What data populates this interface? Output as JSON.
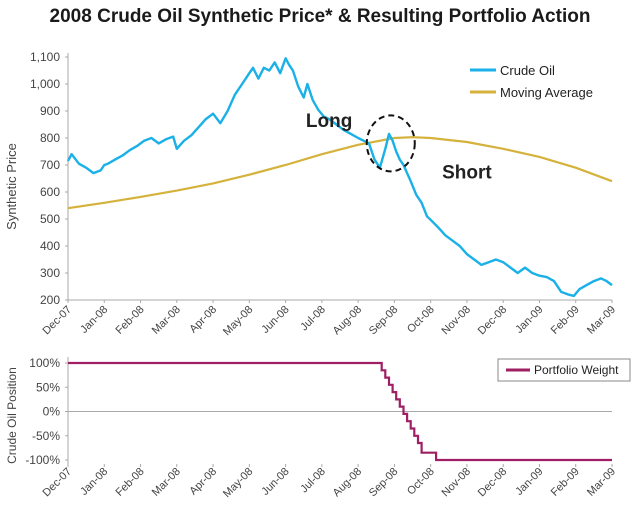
{
  "chart_data": [
    {
      "type": "line",
      "title": "2008 Crude Oil Synthetic Price* & Resulting Portfolio Action",
      "xlabel": "",
      "ylabel": "Synthetic Price",
      "ylim": [
        200,
        1100
      ],
      "yticks": [
        "200",
        "300",
        "400",
        "500",
        "600",
        "700",
        "800",
        "900",
        "1,000",
        "1,100"
      ],
      "categories": [
        "Dec-07",
        "Jan-08",
        "Feb-08",
        "Mar-08",
        "Apr-08",
        "May-08",
        "Jun-08",
        "Jul-08",
        "Aug-08",
        "Sep-08",
        "Oct-08",
        "Nov-08",
        "Dec-08",
        "Jan-09",
        "Feb-09",
        "Mar-09"
      ],
      "legend_position": "top-right",
      "colors": {
        "crude": "#1ab0e8",
        "ma": "#d4b23c",
        "axis": "#aaaaaa",
        "text": "#444444"
      },
      "series": [
        {
          "name": "Crude Oil",
          "x": [
            0,
            0.1,
            0.3,
            0.5,
            0.7,
            0.9,
            1.0,
            1.1,
            1.3,
            1.5,
            1.7,
            1.9,
            2.1,
            2.3,
            2.5,
            2.7,
            2.9,
            3.0,
            3.2,
            3.4,
            3.6,
            3.8,
            4.0,
            4.2,
            4.4,
            4.6,
            4.8,
            5.0,
            5.1,
            5.25,
            5.4,
            5.55,
            5.7,
            5.85,
            6.0,
            6.1,
            6.2,
            6.35,
            6.5,
            6.6,
            6.75,
            6.9,
            7.05,
            7.2,
            7.4,
            7.6,
            7.8,
            8.0,
            8.15,
            8.3,
            8.45,
            8.6,
            8.75,
            8.85,
            8.95,
            9.05,
            9.15,
            9.25,
            9.35,
            9.45,
            9.6,
            9.75,
            9.9,
            10.05,
            10.2,
            10.4,
            10.6,
            10.8,
            11.0,
            11.2,
            11.4,
            11.6,
            11.8,
            12.0,
            12.2,
            12.4,
            12.6,
            12.8,
            13.0,
            13.2,
            13.4,
            13.6,
            13.8,
            13.95,
            14.1,
            14.3,
            14.5,
            14.7,
            14.85,
            15.0
          ],
          "values": [
            715,
            740,
            705,
            690,
            670,
            680,
            700,
            705,
            720,
            735,
            755,
            770,
            790,
            800,
            780,
            795,
            805,
            760,
            790,
            810,
            840,
            870,
            890,
            855,
            900,
            960,
            1000,
            1040,
            1060,
            1020,
            1060,
            1050,
            1080,
            1040,
            1095,
            1070,
            1050,
            990,
            950,
            1000,
            940,
            905,
            880,
            870,
            850,
            830,
            815,
            800,
            790,
            780,
            720,
            690,
            760,
            815,
            790,
            750,
            720,
            700,
            670,
            640,
            590,
            560,
            510,
            490,
            470,
            440,
            420,
            400,
            370,
            350,
            330,
            340,
            350,
            340,
            320,
            300,
            320,
            300,
            290,
            285,
            270,
            230,
            220,
            215,
            240,
            255,
            270,
            280,
            270,
            255
          ]
        },
        {
          "name": "Moving Average",
          "x": [
            0,
            1,
            2,
            3,
            4,
            5,
            6,
            7,
            8,
            9,
            9.5,
            10,
            11,
            12,
            13,
            14,
            15
          ],
          "values": [
            540,
            560,
            582,
            605,
            632,
            664,
            700,
            740,
            775,
            800,
            803,
            800,
            785,
            760,
            730,
            690,
            640
          ]
        }
      ],
      "annotations": [
        "Long",
        "Short"
      ]
    },
    {
      "type": "line",
      "title": "",
      "xlabel": "",
      "ylabel": "Crude Oil Position",
      "ylim": [
        -100,
        100
      ],
      "yticks": [
        "-100%",
        "-50%",
        "0%",
        "50%",
        "100%"
      ],
      "categories": [
        "Dec-07",
        "Jan-08",
        "Feb-08",
        "Mar-08",
        "Apr-08",
        "May-08",
        "Jun-08",
        "Jul-08",
        "Aug-08",
        "Sep-08",
        "Oct-08",
        "Nov-08",
        "Dec-08",
        "Jan-09",
        "Feb-09",
        "Mar-09"
      ],
      "legend_position": "top-right",
      "colors": {
        "weight": "#9e1f63"
      },
      "series": [
        {
          "name": "Portfolio Weight",
          "x": [
            0,
            8.65,
            8.65,
            8.75,
            8.75,
            8.85,
            8.85,
            8.95,
            8.95,
            9.05,
            9.05,
            9.15,
            9.15,
            9.25,
            9.25,
            9.35,
            9.35,
            9.45,
            9.45,
            9.55,
            9.55,
            9.65,
            9.65,
            9.75,
            9.75,
            10.15,
            10.15,
            15.0
          ],
          "values": [
            100,
            100,
            85,
            85,
            70,
            70,
            55,
            55,
            40,
            40,
            25,
            25,
            10,
            10,
            -5,
            -5,
            -20,
            -20,
            -35,
            -35,
            -50,
            -50,
            -65,
            -65,
            -85,
            -85,
            -100,
            -100
          ]
        }
      ]
    }
  ]
}
